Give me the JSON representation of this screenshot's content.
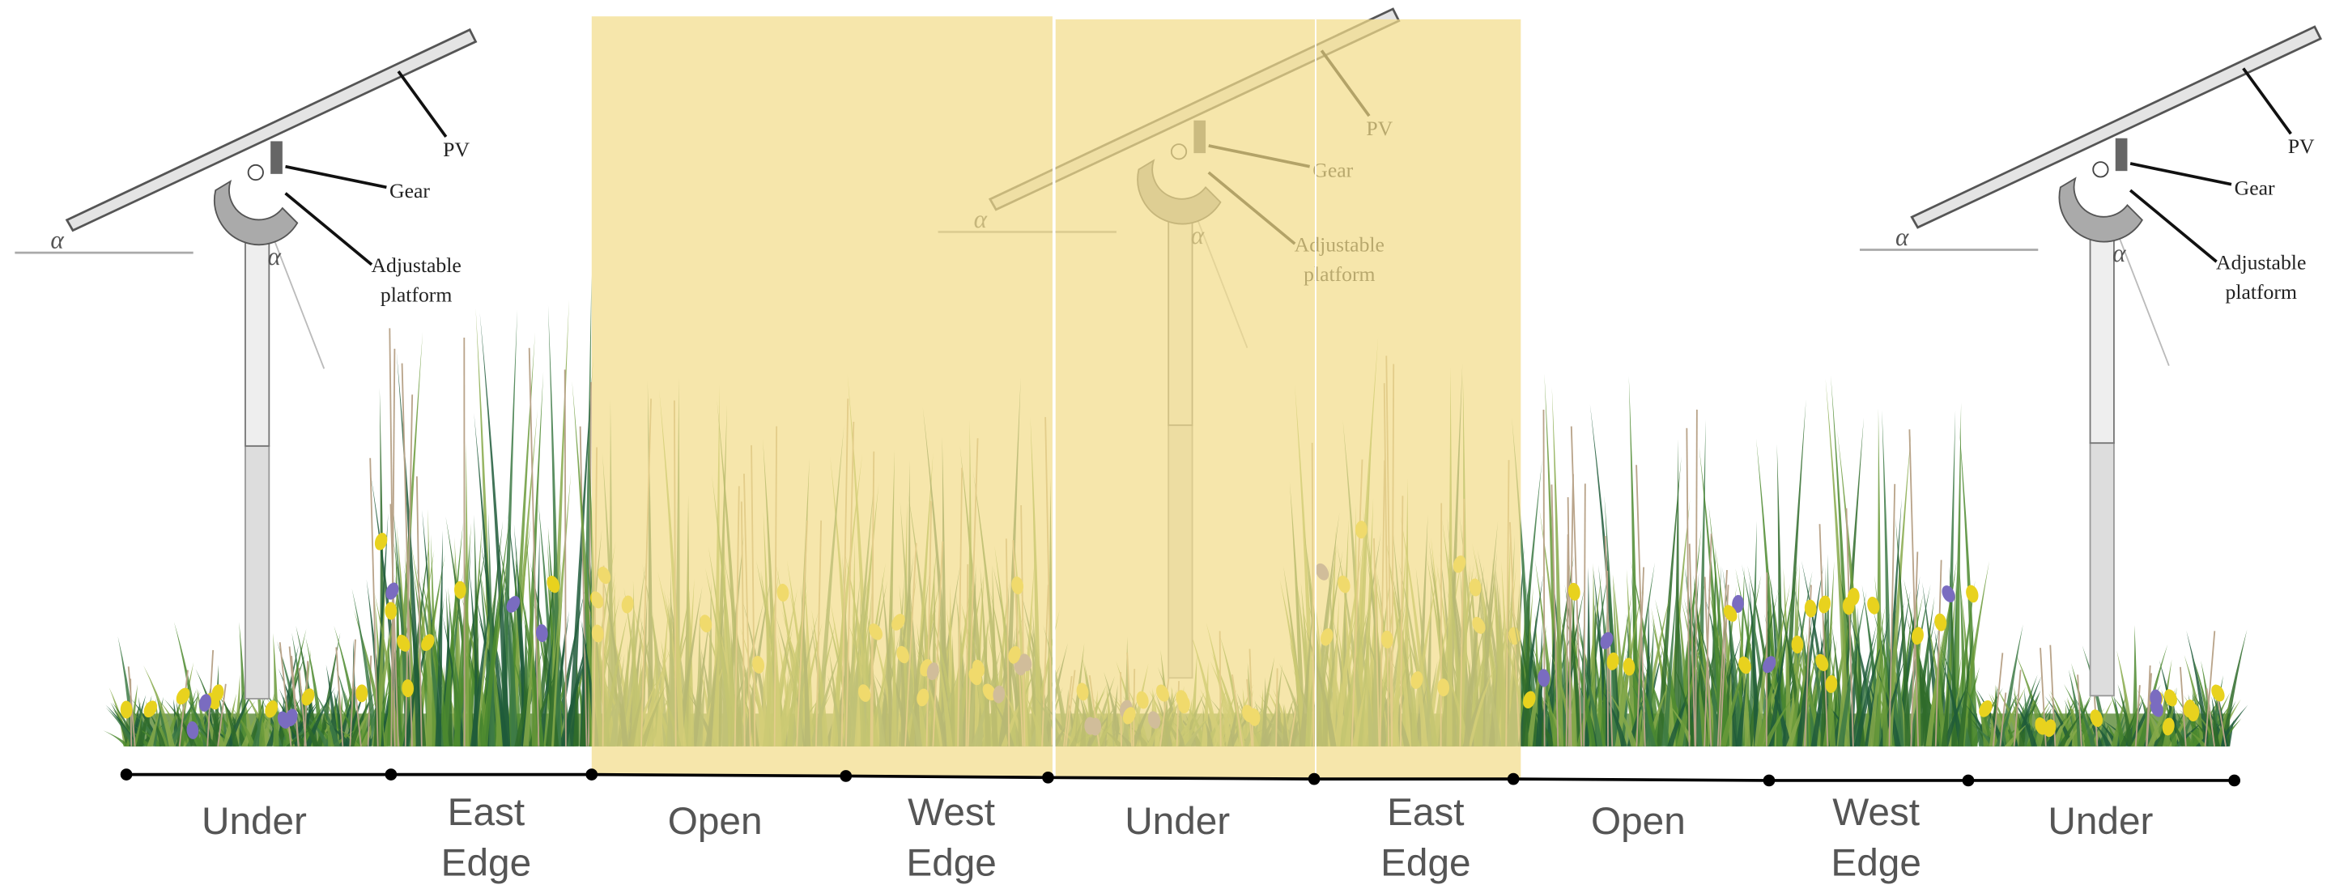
{
  "panels": [
    {
      "pv": "PV",
      "gear": "Gear",
      "platform": [
        "Adjustable",
        "platform"
      ],
      "alpha": "α"
    },
    {
      "pv": "PV",
      "gear": "Gear",
      "platform": [
        "Adjustable",
        "platform"
      ],
      "alpha": "α"
    },
    {
      "pv": "PV",
      "gear": "Gear",
      "platform": [
        "Adjustable",
        "platform"
      ],
      "alpha": "α"
    }
  ],
  "zones": [
    {
      "lines": [
        "Under"
      ]
    },
    {
      "lines": [
        "East",
        "Edge"
      ]
    },
    {
      "lines": [
        "Open"
      ]
    },
    {
      "lines": [
        "West",
        "Edge"
      ]
    },
    {
      "lines": [
        "Under"
      ]
    },
    {
      "lines": [
        "East",
        "Edge"
      ]
    },
    {
      "lines": [
        "Open"
      ]
    },
    {
      "lines": [
        "West",
        "Edge"
      ]
    },
    {
      "lines": [
        "Under"
      ]
    }
  ]
}
